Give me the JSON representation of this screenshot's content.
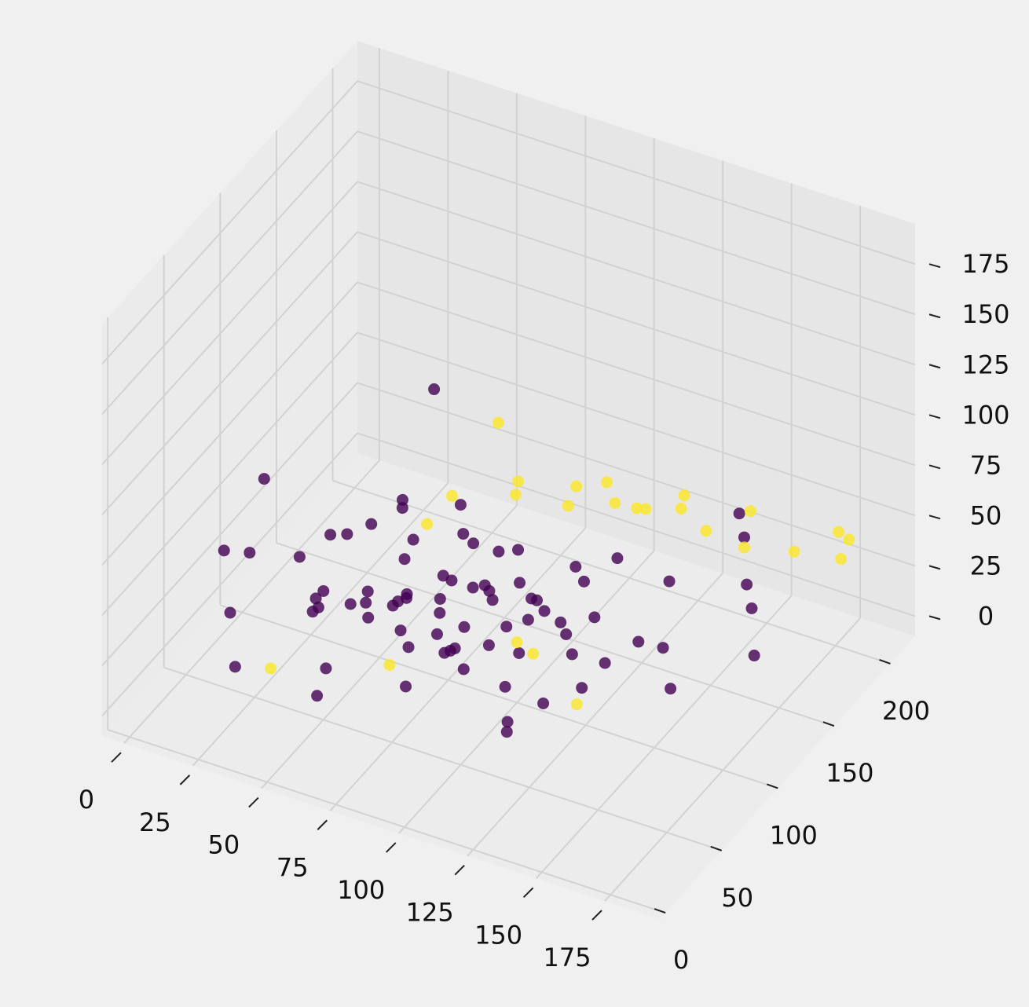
{
  "chart_data": {
    "type": "scatter3d",
    "xlim": [
      -8,
      195
    ],
    "ylim": [
      -5,
      222
    ],
    "zlim": [
      -10,
      195
    ],
    "xticks": [
      0,
      25,
      50,
      75,
      100,
      125,
      150,
      175
    ],
    "yticks": [
      0,
      50,
      100,
      150,
      200
    ],
    "zticks": [
      0,
      25,
      50,
      75,
      100,
      125,
      150,
      175
    ],
    "grid": true,
    "series": [
      {
        "color": "#440154",
        "x": [
          12,
          25,
          30,
          38,
          42,
          45,
          48,
          50,
          52,
          55,
          58,
          60,
          62,
          64,
          66,
          68,
          70,
          72,
          74,
          76,
          78,
          80,
          82,
          84,
          86,
          88,
          90,
          92,
          95,
          98,
          100,
          102,
          105,
          108,
          110,
          112,
          115,
          118,
          120,
          125,
          130,
          135,
          140,
          145,
          150,
          160,
          170,
          20,
          28,
          35,
          40,
          44,
          47,
          53,
          57,
          61,
          65,
          69,
          73,
          77,
          81,
          85,
          89,
          93,
          97,
          101,
          106,
          111,
          116,
          122,
          128,
          134,
          8,
          15,
          22,
          33,
          140,
          155,
          165,
          60
        ],
        "y": [
          60,
          90,
          120,
          75,
          140,
          100,
          55,
          130,
          85,
          110,
          70,
          150,
          95,
          40,
          125,
          80,
          105,
          65,
          135,
          90,
          115,
          50,
          145,
          100,
          75,
          120,
          60,
          95,
          130,
          80,
          110,
          40,
          140,
          70,
          100,
          160,
          55,
          125,
          90,
          30,
          105,
          150,
          60,
          120,
          180,
          90,
          140,
          35,
          110,
          80,
          65,
          135,
          100,
          45,
          155,
          85,
          120,
          70,
          95,
          140,
          50,
          115,
          80,
          130,
          60,
          100,
          145,
          75,
          110,
          90,
          55,
          125,
          100,
          70,
          40,
          190,
          200,
          170,
          150,
          20
        ],
        "z": [
          20,
          35,
          30,
          25,
          40,
          15,
          50,
          30,
          20,
          35,
          45,
          25,
          30,
          60,
          20,
          40,
          25,
          35,
          15,
          30,
          50,
          20,
          30,
          40,
          25,
          10,
          35,
          45,
          20,
          30,
          25,
          55,
          35,
          20,
          40,
          30,
          15,
          25,
          45,
          30,
          20,
          35,
          40,
          25,
          45,
          30,
          20,
          70,
          35,
          25,
          30,
          40,
          55,
          20,
          35,
          30,
          25,
          45,
          15,
          30,
          40,
          25,
          35,
          20,
          30,
          50,
          25,
          35,
          15,
          40,
          30,
          20,
          60,
          45,
          10,
          60,
          40,
          30,
          35,
          25
        ]
      },
      {
        "color": "#fde725",
        "x": [
          60,
          75,
          80,
          90,
          95,
          100,
          105,
          110,
          115,
          120,
          125,
          130,
          140,
          150,
          160,
          170,
          175,
          85,
          70,
          100,
          110,
          130,
          180,
          55,
          35
        ],
        "y": [
          140,
          160,
          150,
          170,
          165,
          180,
          175,
          190,
          170,
          200,
          185,
          195,
          210,
          180,
          200,
          215,
          205,
          120,
          60,
          100,
          90,
          80,
          200,
          130,
          40
        ],
        "z": [
          50,
          45,
          60,
          40,
          55,
          50,
          45,
          35,
          50,
          40,
          45,
          30,
          35,
          40,
          30,
          35,
          30,
          110,
          20,
          20,
          25,
          15,
          45,
          40,
          15
        ]
      }
    ]
  }
}
